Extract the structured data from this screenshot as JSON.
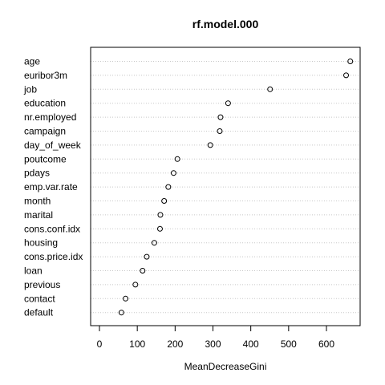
{
  "chart_data": {
    "type": "scatter",
    "title": "rf.model.000",
    "xlabel": "MeanDecreaseGini",
    "ylabel": "",
    "grid": true,
    "xlim": [
      -10,
      685
    ],
    "xticks": [
      0,
      100,
      200,
      300,
      400,
      500,
      600
    ],
    "categories": [
      "age",
      "euribor3m",
      "job",
      "education",
      "nr.employed",
      "campaign",
      "day_of_week",
      "poutcome",
      "pdays",
      "emp.var.rate",
      "month",
      "marital",
      "cons.conf.idx",
      "housing",
      "cons.price.idx",
      "loan",
      "previous",
      "contact",
      "default"
    ],
    "values": [
      663,
      652,
      451,
      340,
      320,
      318,
      293,
      206,
      196,
      182,
      171,
      161,
      160,
      145,
      125,
      114,
      95,
      69,
      58
    ]
  }
}
